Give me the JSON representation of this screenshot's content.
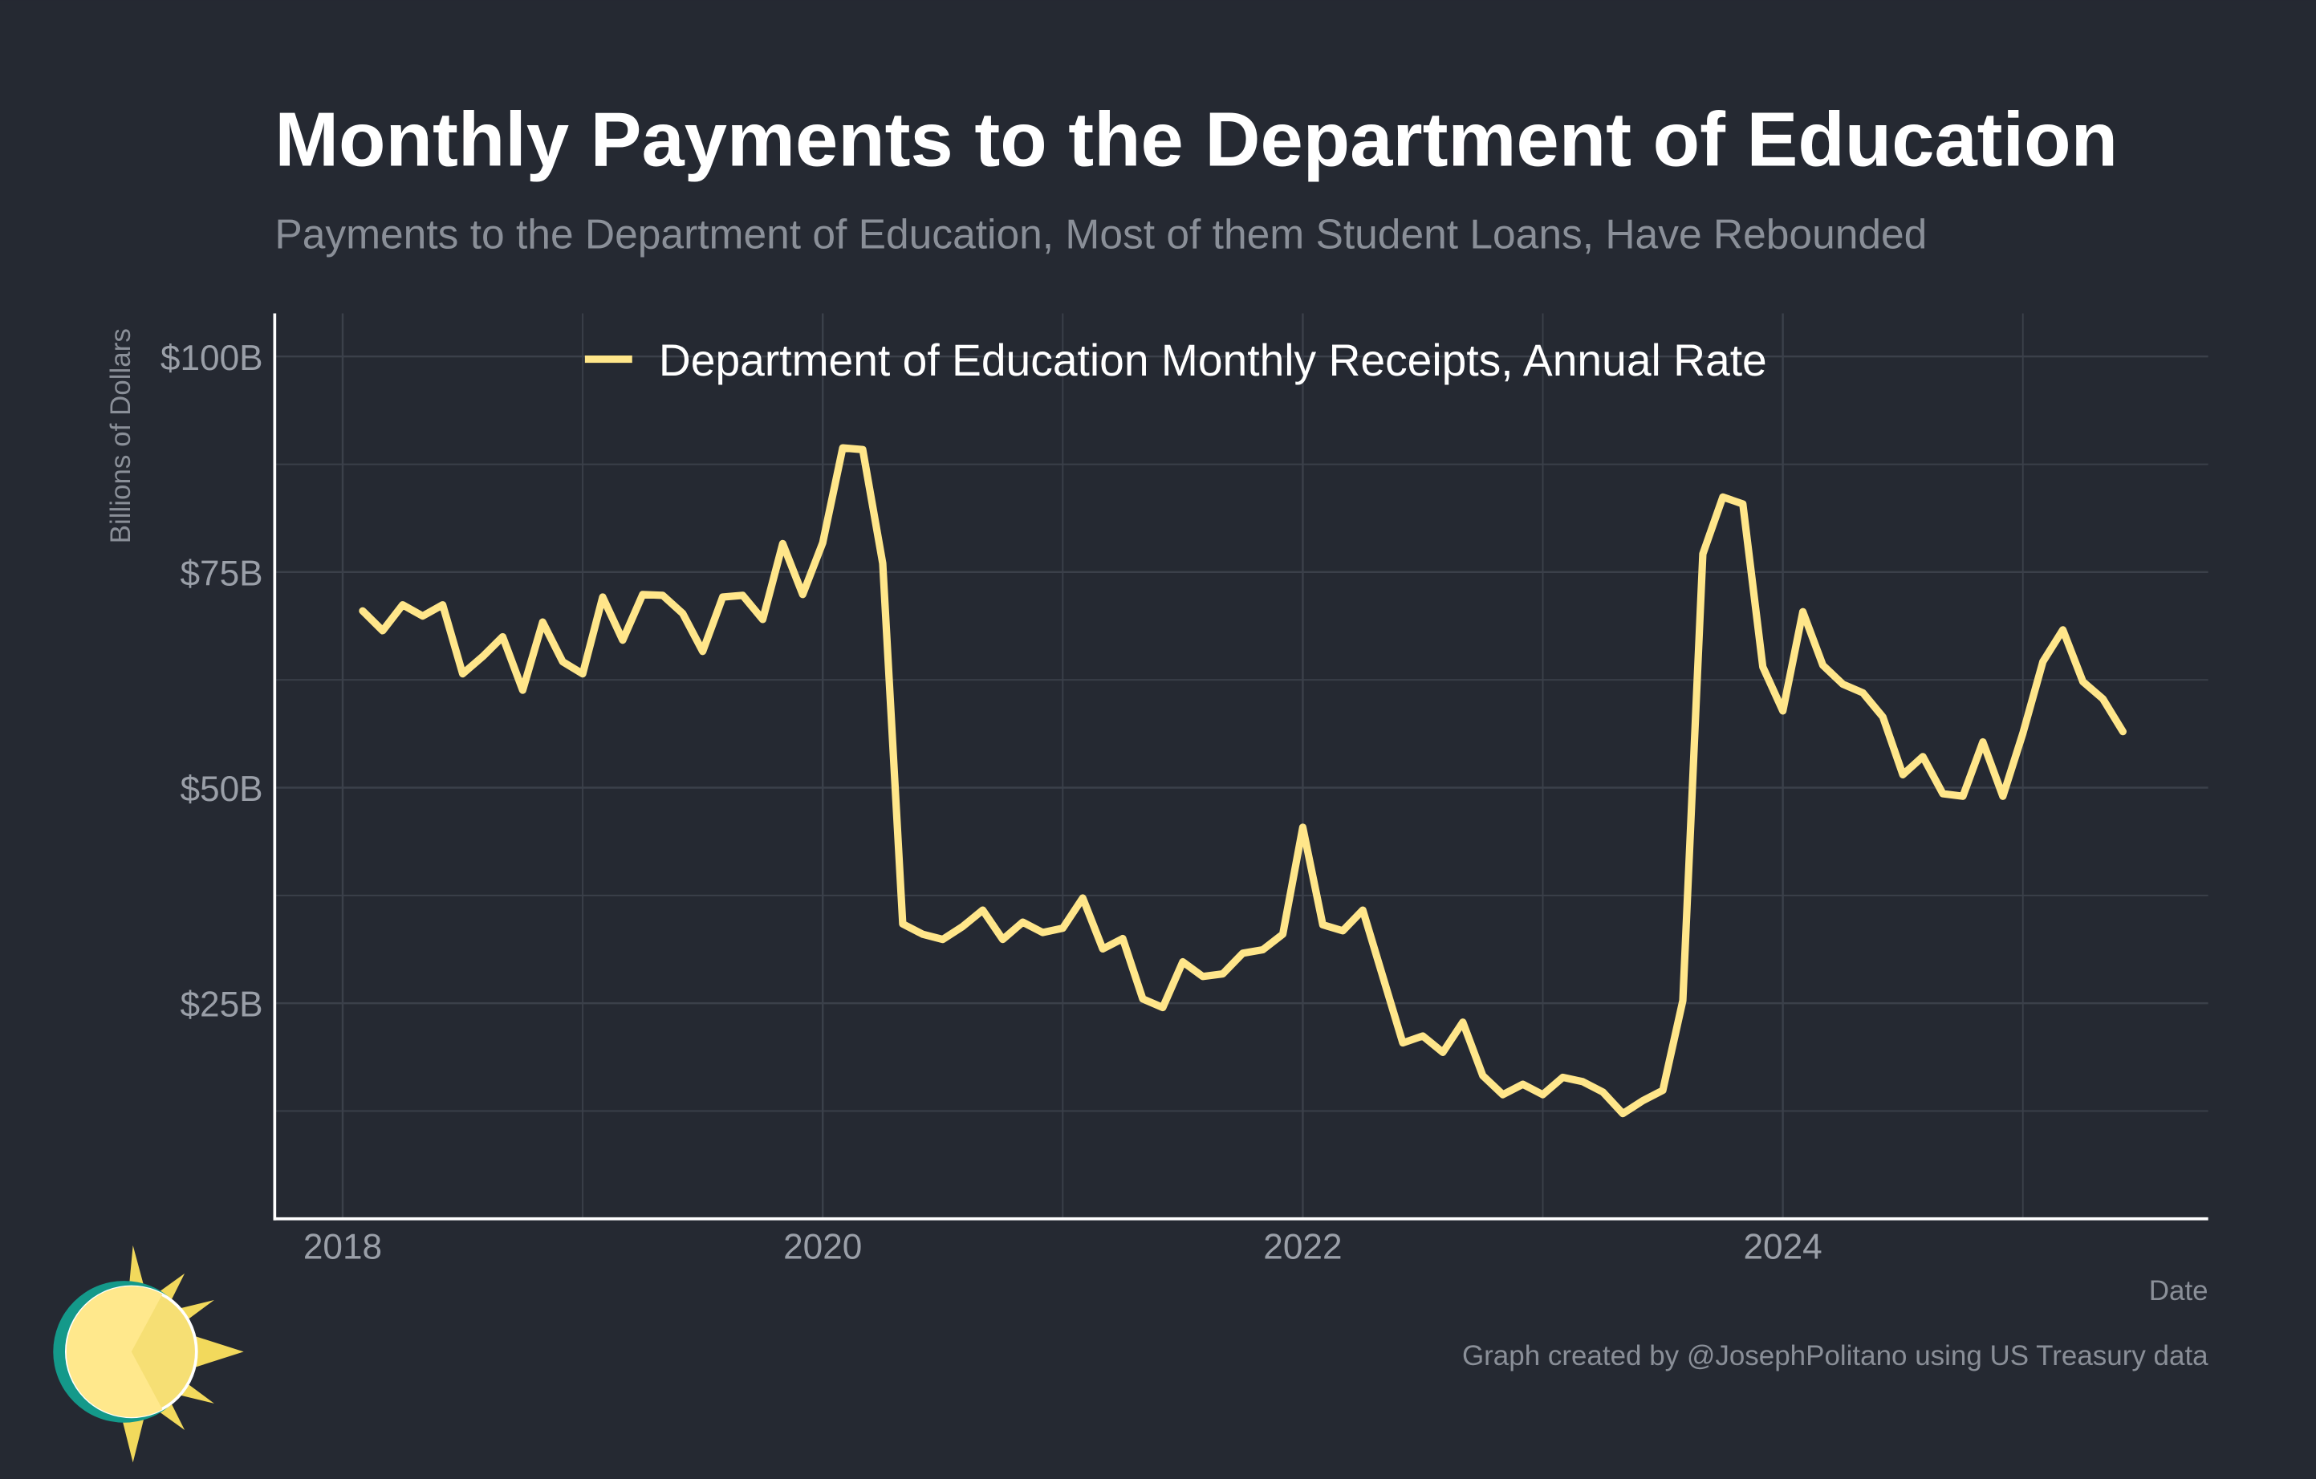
{
  "chart_data": {
    "type": "line",
    "title": "Monthly Payments to the Department of Education",
    "subtitle": "Payments to the Department of Education, Most of them Student Loans, Have Rebounded",
    "ylabel": "Billions of Dollars",
    "xlabel": "Date",
    "caption": "Graph created by @JosephPolitano using US Treasury data",
    "x": [
      "2018-02",
      "2018-03",
      "2018-04",
      "2018-05",
      "2018-06",
      "2018-07",
      "2018-08",
      "2018-09",
      "2018-10",
      "2018-11",
      "2018-12",
      "2019-01",
      "2019-02",
      "2019-03",
      "2019-04",
      "2019-05",
      "2019-06",
      "2019-07",
      "2019-08",
      "2019-09",
      "2019-10",
      "2019-11",
      "2019-12",
      "2020-01",
      "2020-02",
      "2020-03",
      "2020-04",
      "2020-05",
      "2020-06",
      "2020-07",
      "2020-08",
      "2020-09",
      "2020-10",
      "2020-11",
      "2020-12",
      "2021-01",
      "2021-02",
      "2021-03",
      "2021-04",
      "2021-05",
      "2021-06",
      "2021-07",
      "2021-08",
      "2021-09",
      "2021-10",
      "2021-11",
      "2021-12",
      "2022-01",
      "2022-02",
      "2022-03",
      "2022-04",
      "2022-05",
      "2022-06",
      "2022-07",
      "2022-08",
      "2022-09",
      "2022-10",
      "2022-11",
      "2022-12",
      "2023-01",
      "2023-02",
      "2023-03",
      "2023-04",
      "2023-05",
      "2023-06",
      "2023-07",
      "2023-08",
      "2023-09",
      "2023-10",
      "2023-11",
      "2023-12",
      "2024-01",
      "2024-02",
      "2024-03",
      "2024-04",
      "2024-05",
      "2024-06",
      "2024-07",
      "2024-08",
      "2024-09",
      "2024-10",
      "2024-11",
      "2024-12",
      "2025-01",
      "2025-02",
      "2025-03",
      "2025-04",
      "2025-05",
      "2025-06"
    ],
    "series": [
      {
        "name": "Department of Education Monthly Receipts, Annual Rate",
        "color": "#ffe68a",
        "values": [
          70.5,
          68.2,
          71.2,
          69.9,
          71.2,
          63.2,
          65.2,
          67.5,
          61.3,
          69.2,
          64.6,
          63.2,
          72.1,
          67.1,
          72.4,
          72.3,
          70.2,
          65.8,
          72.1,
          72.3,
          69.5,
          78.3,
          72.4,
          78.4,
          89.4,
          89.2,
          76.0,
          34.2,
          33.0,
          32.4,
          33.9,
          35.8,
          32.4,
          34.4,
          33.2,
          33.7,
          37.2,
          31.3,
          32.5,
          25.5,
          24.5,
          29.8,
          28.1,
          28.4,
          30.8,
          31.2,
          33.0,
          45.4,
          34.1,
          33.4,
          35.8,
          28.1,
          20.4,
          21.2,
          19.3,
          22.8,
          16.6,
          14.4,
          15.6,
          14.4,
          16.4,
          15.9,
          14.7,
          12.2,
          13.7,
          14.9,
          25.3,
          77.1,
          83.7,
          82.9,
          64.0,
          58.9,
          70.4,
          64.2,
          62.0,
          61.0,
          58.2,
          51.5,
          53.6,
          49.3,
          49.0,
          55.3,
          49.0,
          56.3,
          64.6,
          68.3,
          62.3,
          60.3,
          56.5
        ]
      }
    ],
    "xlim": [
      2017.717,
      2025.772
    ],
    "xticks": [
      2018,
      2020,
      2022,
      2024
    ],
    "x_minor_grid": [
      2019,
      2021,
      2023,
      2025
    ],
    "ylim": [
      0,
      105
    ],
    "yticks": [
      {
        "value": 25,
        "label": "$25B"
      },
      {
        "value": 50,
        "label": "$50B"
      },
      {
        "value": 75,
        "label": "$75B"
      },
      {
        "value": 100,
        "label": "$100B"
      }
    ],
    "y_minor_grid": [
      12.5,
      37.5,
      62.5,
      87.5
    ],
    "grid": true
  }
}
